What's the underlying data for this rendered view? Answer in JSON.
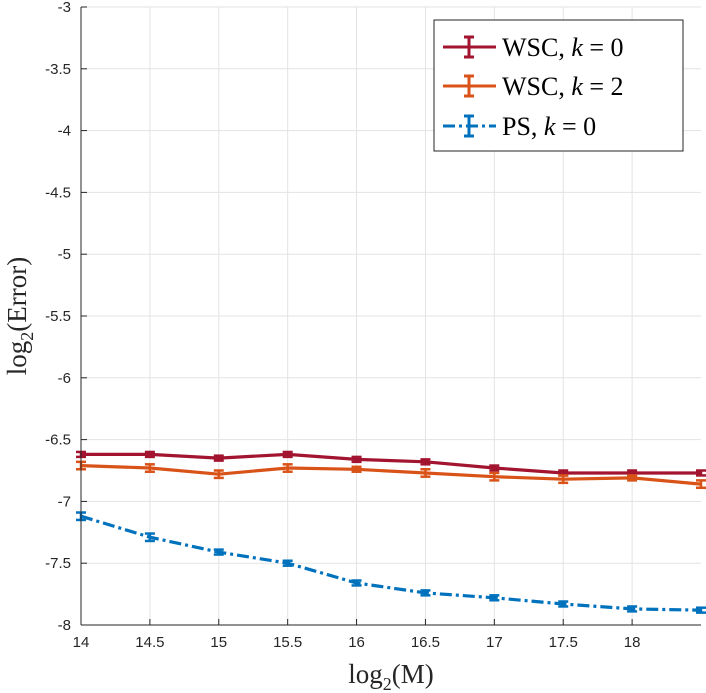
{
  "chart_data": {
    "type": "line",
    "title": "",
    "xlabel": "log2(M)",
    "xlabel_parts": {
      "fn": "log",
      "sub": "2",
      "arg": "(M)"
    },
    "ylabel": "log2(Error)",
    "ylabel_parts": {
      "fn": "log",
      "sub": "2",
      "arg": "(Error)"
    },
    "xlim": [
      14,
      18.5
    ],
    "ylim": [
      -8,
      -3
    ],
    "x_ticks": [
      14,
      14.5,
      15,
      15.5,
      16,
      16.5,
      17,
      17.5,
      18
    ],
    "x_tick_labels": [
      "14",
      "14.5",
      "15",
      "15.5",
      "16",
      "16.5",
      "17",
      "17.5",
      "18"
    ],
    "y_ticks": [
      -3,
      -3.5,
      -4,
      -4.5,
      -5,
      -5.5,
      -6,
      -6.5,
      -7,
      -7.5,
      -8
    ],
    "y_tick_labels": [
      "-3",
      "-3.5",
      "-4",
      "-4.5",
      "-5",
      "-5.5",
      "-6",
      "-6.5",
      "-7",
      "-7.5",
      "-8"
    ],
    "grid": true,
    "legend_position": "top-right",
    "x": [
      14,
      14.5,
      15,
      15.5,
      16,
      16.5,
      17,
      17.5,
      18,
      18.5
    ],
    "series": [
      {
        "name": "WSC, k = 0",
        "legend_prefix": "WSC, ",
        "legend_var": "k",
        "legend_rest": " = 0",
        "color": "#A2142F",
        "dash": "solid",
        "values": [
          -6.62,
          -6.62,
          -6.65,
          -6.62,
          -6.66,
          -6.68,
          -6.73,
          -6.77,
          -6.77,
          -6.77
        ],
        "errors": [
          0.02,
          0.02,
          0.02,
          0.02,
          0.02,
          0.02,
          0.02,
          0.02,
          0.02,
          0.02
        ]
      },
      {
        "name": "WSC, k = 2",
        "legend_prefix": "WSC, ",
        "legend_var": "k",
        "legend_rest": " = 2",
        "color": "#D95319",
        "dash": "solid",
        "values": [
          -6.71,
          -6.73,
          -6.78,
          -6.73,
          -6.74,
          -6.77,
          -6.8,
          -6.82,
          -6.81,
          -6.86
        ],
        "errors": [
          0.03,
          0.03,
          0.03,
          0.03,
          0.02,
          0.03,
          0.03,
          0.03,
          0.02,
          0.03
        ]
      },
      {
        "name": "PS, k = 0",
        "legend_prefix": "PS, ",
        "legend_var": "k",
        "legend_rest": " = 0",
        "color": "#0072BD",
        "dash": "dashdot",
        "values": [
          -7.12,
          -7.29,
          -7.41,
          -7.5,
          -7.66,
          -7.74,
          -7.78,
          -7.83,
          -7.87,
          -7.88
        ],
        "errors": [
          0.03,
          0.03,
          0.02,
          0.02,
          0.02,
          0.02,
          0.02,
          0.02,
          0.02,
          0.02
        ]
      }
    ]
  }
}
